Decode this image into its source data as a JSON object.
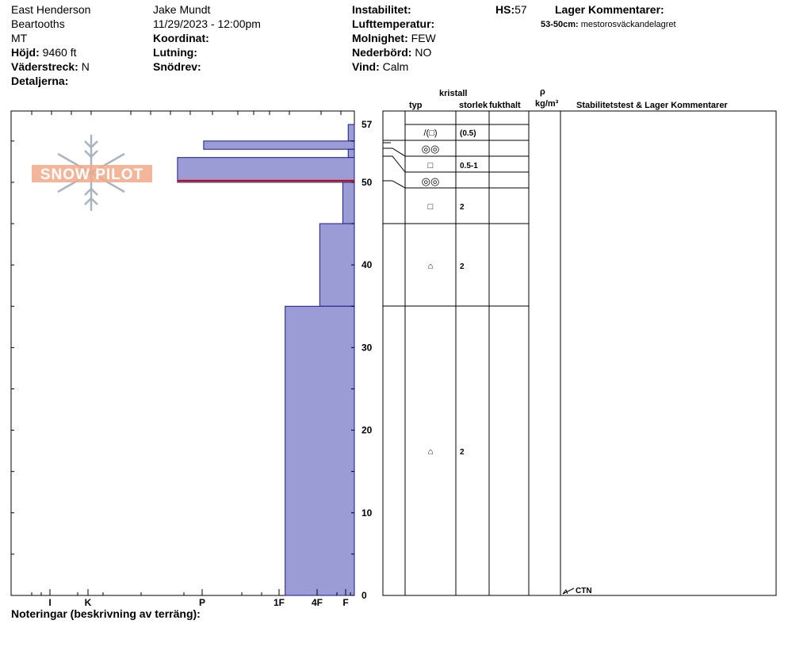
{
  "header": {
    "location": "East Henderson",
    "range": "Beartooths",
    "state": "MT",
    "elevation_label": "Höjd:",
    "elevation_value": "9460 ft",
    "aspect_label": "Väderstreck:",
    "aspect_value": "N",
    "details_label": "Detaljerna:",
    "observer": "Jake Mundt",
    "datetime": "11/29/2023 - 12:00pm",
    "coord_label": "Koordinat:",
    "slope_label": "Lutning:",
    "drift_label": "Snödrev:",
    "instability_label": "Instabilitet:",
    "airtemp_label": "Lufttemperatur:",
    "sky_label": "Molnighet:",
    "sky_value": "FEW",
    "precip_label": "Nederbörd:",
    "precip_value": "NO",
    "wind_label": "Vind:",
    "wind_value": "Calm",
    "hs_label": "HS:",
    "hs_value": "57",
    "layer_comments_label": "Lager Kommentarer:",
    "layer_comment_depth": "53-50cm:",
    "layer_comment_text": "mestorosväckandelagret"
  },
  "logo": {
    "text": "SNOW PILOT"
  },
  "columns": {
    "crystal": "kristall",
    "type": "typ",
    "size": "storlek",
    "moisture": "fukthalt",
    "rho": "ρ",
    "density_unit": "kg/m³",
    "stability": "Stabilitetstest & Lager Kommentarer"
  },
  "footer": {
    "notes_label": "Noteringar (beskrivning av terräng):"
  },
  "test_result": {
    "label": "CTN",
    "depth": 0
  },
  "colors": {
    "layer_fill": "#9b9bd6",
    "layer_stroke": "#1a1a8a",
    "weak_layer": "#cc0000",
    "logo": "#f2a98a",
    "snowflake": "#aab4c0"
  },
  "chart_data": {
    "type": "bar",
    "ylabel": "",
    "ylim": [
      0,
      57
    ],
    "y_ticks": [
      "0",
      "10",
      "20",
      "30",
      "40",
      "50",
      "57"
    ],
    "y_tick_values": [
      0,
      10,
      20,
      30,
      40,
      50,
      57
    ],
    "hardness_scale": [
      "I",
      "K",
      "P",
      "1F",
      "4F",
      "F"
    ],
    "hardness_positions": [
      5,
      4,
      3,
      2,
      1.5,
      1
    ],
    "layers": [
      {
        "top": 57,
        "bottom": 55,
        "hardness": 1.08
      },
      {
        "top": 55,
        "bottom": 54,
        "hardness": 2.96
      },
      {
        "top": 54,
        "bottom": 53,
        "hardness": 1.08
      },
      {
        "top": 53,
        "bottom": 50,
        "hardness": 3.3
      },
      {
        "top": 50,
        "bottom": 45,
        "hardness": 1.15
      },
      {
        "top": 45,
        "bottom": 35,
        "hardness": 1.45
      },
      {
        "top": 35,
        "bottom": 0,
        "hardness": 1.9
      }
    ],
    "weak_layer_depth": 50.2,
    "grain_rows": [
      {
        "top": 57,
        "bottom": 55,
        "type": "/(□)",
        "size": "(0.5)"
      },
      {
        "top": 55,
        "bottom": 53,
        "type": "◎◎",
        "size": ""
      },
      {
        "top": 53,
        "bottom": 51,
        "type": "□",
        "size": "0.5-1"
      },
      {
        "top": 51,
        "bottom": 49,
        "type": "◎◎",
        "size": ""
      },
      {
        "top": 49,
        "bottom": 45,
        "type": "□",
        "size": "2"
      },
      {
        "top": 45,
        "bottom": 35,
        "type": "⌂",
        "size": "2"
      },
      {
        "top": 35,
        "bottom": 0,
        "type": "⌂",
        "size": "2"
      }
    ]
  }
}
